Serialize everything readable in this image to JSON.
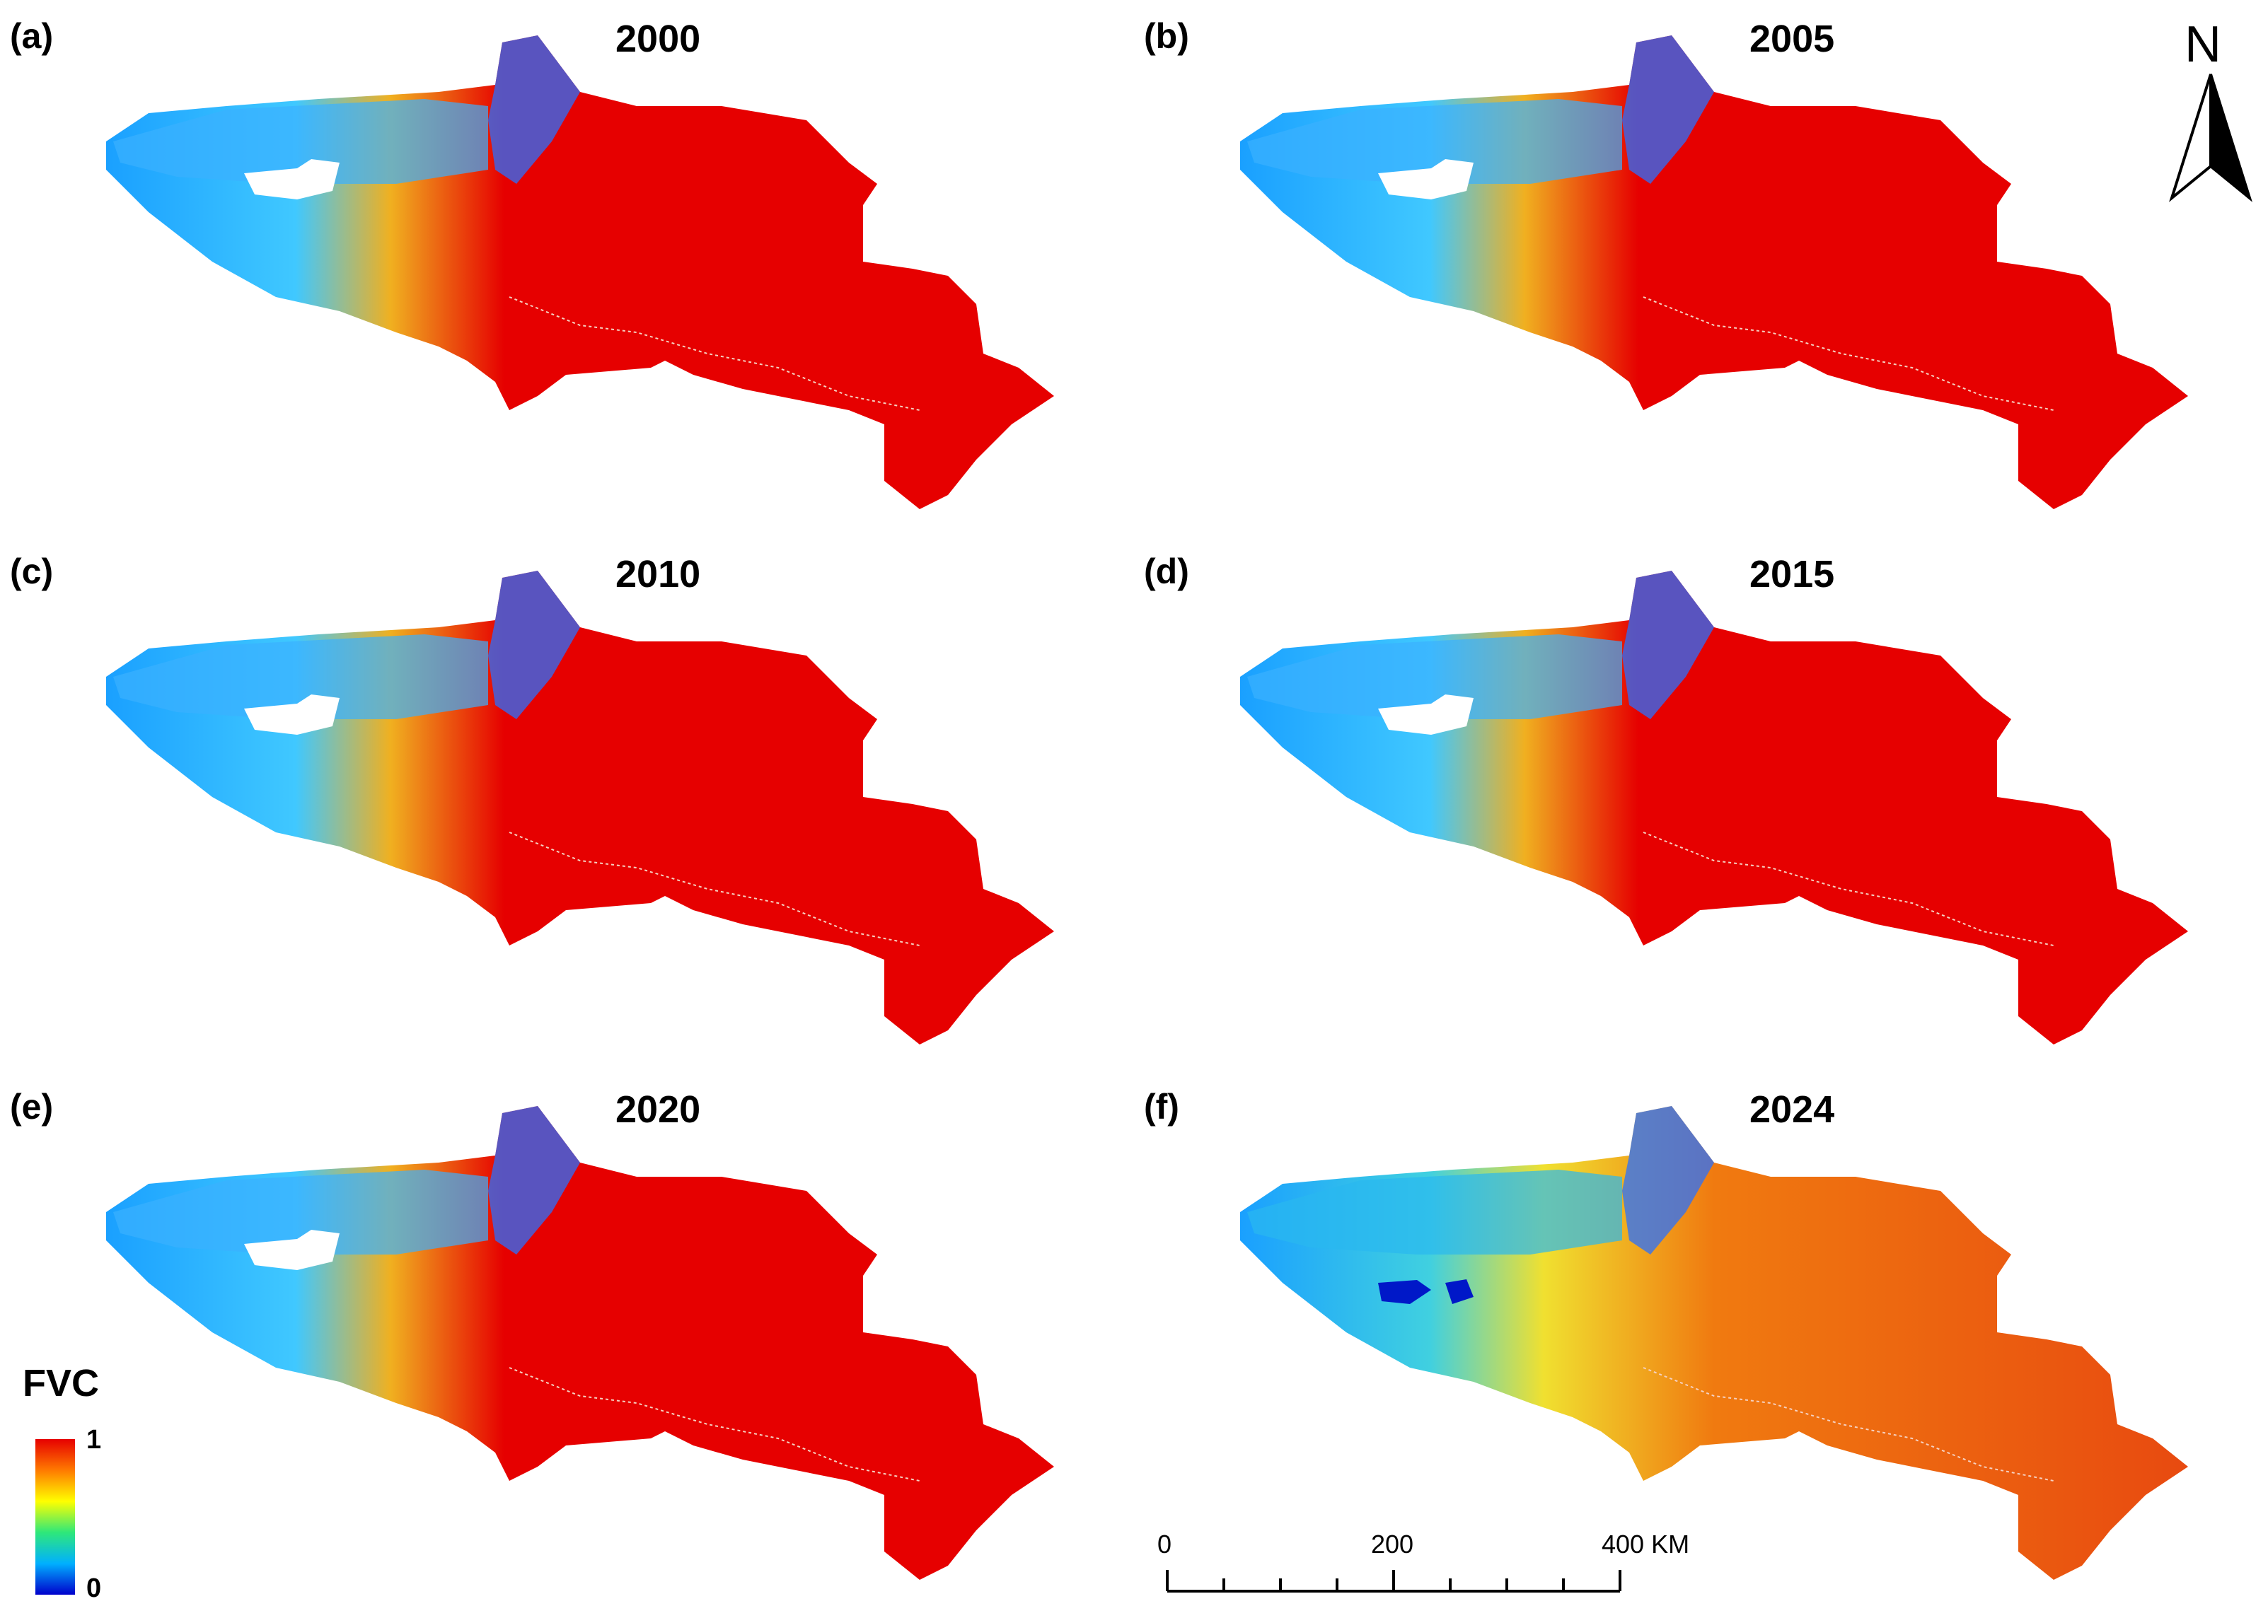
{
  "panels": [
    {
      "label": "(a)",
      "year": "2000",
      "style": "high"
    },
    {
      "label": "(b)",
      "year": "2005",
      "style": "high"
    },
    {
      "label": "(c)",
      "year": "2010",
      "style": "high"
    },
    {
      "label": "(d)",
      "year": "2015",
      "style": "high"
    },
    {
      "label": "(e)",
      "year": "2020",
      "style": "high"
    },
    {
      "label": "(f)",
      "year": "2024",
      "style": "mid"
    }
  ],
  "legend": {
    "title": "FVC",
    "max": "1",
    "min": "0"
  },
  "north_arrow": {
    "letter": "N"
  },
  "scale_bar": {
    "labels": [
      "0",
      "200",
      "400 KM"
    ]
  },
  "colors": {
    "high_fvc": "#e60000",
    "mid_fvc": "#f07a10",
    "low_fvc": "#1aa0ff",
    "very_low": "#0018c8"
  }
}
